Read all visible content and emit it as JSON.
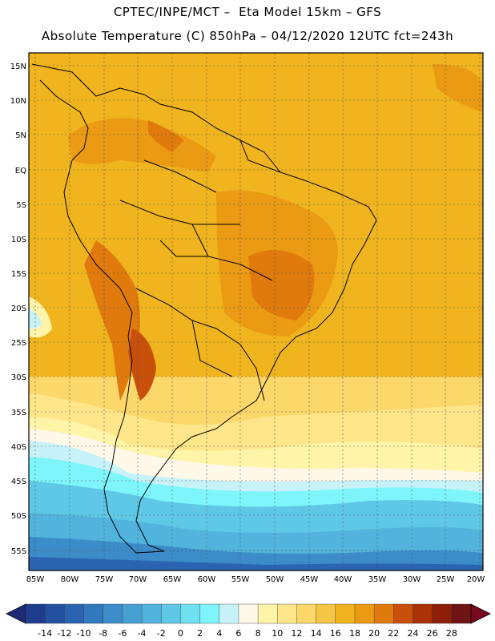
{
  "header": {
    "line1": "CPTEC/INPE/MCT –  Eta Model 15km – GFS",
    "line2": "Absolute Temperature (C) 850hPa – 04/12/2020 12UTC fct=243h"
  },
  "map": {
    "lat_labels": [
      "15N",
      "10N",
      "5N",
      "EQ",
      "5S",
      "10S",
      "15S",
      "20S",
      "25S",
      "30S",
      "35S",
      "40S",
      "45S",
      "50S",
      "55S"
    ],
    "lon_labels": [
      "85W",
      "80W",
      "75W",
      "70W",
      "65W",
      "60W",
      "55W",
      "50W",
      "45W",
      "40W",
      "35W",
      "30W",
      "25W",
      "20W"
    ]
  },
  "colorbar": {
    "labels": [
      "-14",
      "-12",
      "-10",
      "-8",
      "-6",
      "-4",
      "-2",
      "0",
      "2",
      "4",
      "6",
      "8",
      "10",
      "12",
      "14",
      "16",
      "18",
      "20",
      "22",
      "24",
      "26",
      "28"
    ],
    "colors": [
      "#1e3c8c",
      "#23509f",
      "#2a64b0",
      "#3278bc",
      "#3b8cc8",
      "#46a0d2",
      "#52b4dc",
      "#5fc8e6",
      "#6ee0ef",
      "#7df5fa",
      "#c8f2fa",
      "#fff8e8",
      "#fff4a8",
      "#ffe68a",
      "#fcd76a",
      "#f5c545",
      "#f0b41e",
      "#eb9a14",
      "#e07a0c",
      "#c8500a",
      "#aa3205",
      "#8c1e0a",
      "#6e1414"
    ],
    "low_arrow_color": "#1e2a78",
    "high_arrow_color": "#780a1e"
  }
}
